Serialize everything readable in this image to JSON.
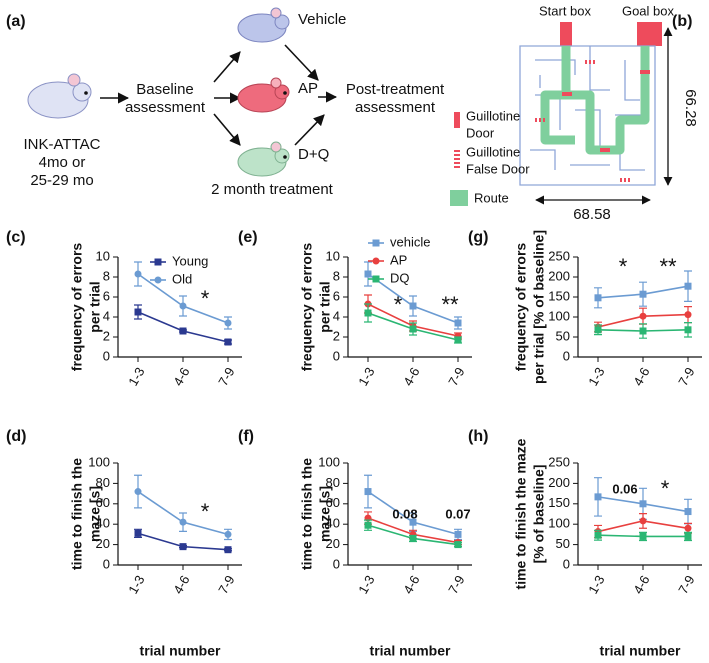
{
  "panel_a": {
    "label": "(a)",
    "source": [
      "INK-ATTAC",
      "4mo or",
      "25-29 mo"
    ],
    "baseline": [
      "Baseline",
      "assessment"
    ],
    "groups": [
      "Vehicle",
      "AP",
      "D+Q"
    ],
    "treatment": "2 month treatment",
    "post": [
      "Post-treatment",
      "assessment"
    ]
  },
  "panel_b": {
    "label": "(b)",
    "start": "Start box",
    "goal": "Goal box",
    "legend": [
      [
        "Guillotine",
        "Door"
      ],
      [
        "Guillotine",
        "False Door"
      ],
      [
        "Route"
      ]
    ],
    "height": "66.28",
    "width": "68.58"
  },
  "chart_data": [
    {
      "type": "line",
      "label": "(c)",
      "ylabel": [
        "frequency of errors",
        "per trial"
      ],
      "categories": [
        "1-3",
        "4-6",
        "7-9"
      ],
      "ylim": [
        0,
        10
      ],
      "yticks": [
        0,
        2,
        4,
        6,
        8,
        10
      ],
      "series": [
        {
          "name": "Young",
          "color": "#2b3990",
          "marker": "square",
          "values": [
            4.5,
            2.6,
            1.5
          ],
          "errors": [
            0.7,
            0.1,
            0.2
          ]
        },
        {
          "name": "Old",
          "color": "#6b9bd2",
          "marker": "circle",
          "values": [
            8.3,
            5.1,
            3.4
          ],
          "errors": [
            1.2,
            1.0,
            0.6
          ]
        }
      ],
      "annotations": [
        {
          "text": "*",
          "color": "#2b3990"
        }
      ]
    },
    {
      "type": "line",
      "label": "(e)",
      "ylabel": [
        "frequency of errors",
        "per trial"
      ],
      "categories": [
        "1-3",
        "4-6",
        "7-9"
      ],
      "ylim": [
        0,
        10
      ],
      "yticks": [
        0,
        2,
        4,
        6,
        8,
        10
      ],
      "series": [
        {
          "name": "vehicle",
          "color": "#6b9bd2",
          "marker": "square",
          "values": [
            8.3,
            5.1,
            3.4
          ],
          "errors": [
            1.2,
            1.0,
            0.6
          ]
        },
        {
          "name": "AP",
          "color": "#e8403f",
          "marker": "circle",
          "values": [
            5.3,
            3.1,
            2.1
          ],
          "errors": [
            0.9,
            0.5,
            0.3
          ]
        },
        {
          "name": "DQ",
          "color": "#2bb673",
          "marker": "square",
          "values": [
            4.4,
            2.8,
            1.7
          ],
          "errors": [
            0.9,
            0.6,
            0.3
          ]
        }
      ],
      "annotations": [
        {
          "text": "*",
          "color": "#e8403f"
        },
        {
          "text": "**",
          "color": "#2bb673"
        }
      ]
    },
    {
      "type": "line",
      "label": "(g)",
      "ylabel": [
        "frequency of errors",
        "per trial [% of baseline]"
      ],
      "categories": [
        "1-3",
        "4-6",
        "7-9"
      ],
      "ylim": [
        0,
        250
      ],
      "yticks": [
        0,
        50,
        100,
        150,
        200,
        250
      ],
      "series": [
        {
          "color": "#6b9bd2",
          "marker": "square",
          "values": [
            148,
            157,
            177
          ],
          "errors": [
            25,
            30,
            38
          ]
        },
        {
          "color": "#e8403f",
          "marker": "circle",
          "values": [
            75,
            102,
            106
          ],
          "errors": [
            12,
            20,
            20
          ]
        },
        {
          "color": "#2bb673",
          "marker": "square",
          "values": [
            68,
            65,
            68
          ],
          "errors": [
            12,
            18,
            18
          ]
        }
      ],
      "annotations": [
        {
          "text": "*",
          "color": "#e8403f"
        },
        {
          "text": "**",
          "color": "#2bb673"
        }
      ]
    },
    {
      "type": "line",
      "label": "(d)",
      "ylabel": [
        "time to finish the",
        "maze [s]"
      ],
      "xlabel": "trial number",
      "categories": [
        "1-3",
        "4-6",
        "7-9"
      ],
      "ylim": [
        0,
        100
      ],
      "yticks": [
        0,
        20,
        40,
        60,
        80,
        100
      ],
      "series": [
        {
          "color": "#2b3990",
          "marker": "square",
          "values": [
            31,
            18,
            15
          ],
          "errors": [
            4,
            1,
            1
          ]
        },
        {
          "color": "#6b9bd2",
          "marker": "circle",
          "values": [
            72,
            42,
            30
          ],
          "errors": [
            16,
            9,
            5
          ]
        }
      ],
      "annotations": [
        {
          "text": "*",
          "color": "#2b3990"
        }
      ]
    },
    {
      "type": "line",
      "label": "(f)",
      "ylabel": [
        "time to finish the",
        "maze [s]"
      ],
      "xlabel": "trial number",
      "categories": [
        "1-3",
        "4-6",
        "7-9"
      ],
      "ylim": [
        0,
        100
      ],
      "yticks": [
        0,
        20,
        40,
        60,
        80,
        100
      ],
      "series": [
        {
          "color": "#6b9bd2",
          "marker": "square",
          "values": [
            72,
            42,
            30
          ],
          "errors": [
            16,
            9,
            5
          ]
        },
        {
          "color": "#e8403f",
          "marker": "circle",
          "values": [
            46,
            30,
            22
          ],
          "errors": [
            6,
            4,
            2
          ]
        },
        {
          "color": "#2bb673",
          "marker": "square",
          "values": [
            39,
            26,
            20
          ],
          "errors": [
            5,
            3,
            2
          ]
        }
      ],
      "annotations": [
        {
          "text": "0.08",
          "color": "#e8403f"
        },
        {
          "text": "0.07",
          "color": "#2bb673"
        }
      ]
    },
    {
      "type": "line",
      "label": "(h)",
      "ylabel": [
        "time to finish the maze",
        "[% of baseline]"
      ],
      "xlabel": "trial number",
      "categories": [
        "1-3",
        "4-6",
        "7-9"
      ],
      "ylim": [
        0,
        250
      ],
      "yticks": [
        0,
        50,
        100,
        150,
        200,
        250
      ],
      "series": [
        {
          "color": "#6b9bd2",
          "marker": "square",
          "values": [
            167,
            150,
            131
          ],
          "errors": [
            47,
            38,
            30
          ]
        },
        {
          "color": "#e8403f",
          "marker": "circle",
          "values": [
            82,
            108,
            90
          ],
          "errors": [
            15,
            18,
            12
          ]
        },
        {
          "color": "#2bb673",
          "marker": "square",
          "values": [
            73,
            70,
            70
          ],
          "errors": [
            12,
            10,
            10
          ]
        }
      ],
      "annotations": [
        {
          "text": "0.06",
          "color": "#e8403f"
        },
        {
          "text": "*",
          "color": "#2bb673"
        }
      ]
    }
  ]
}
